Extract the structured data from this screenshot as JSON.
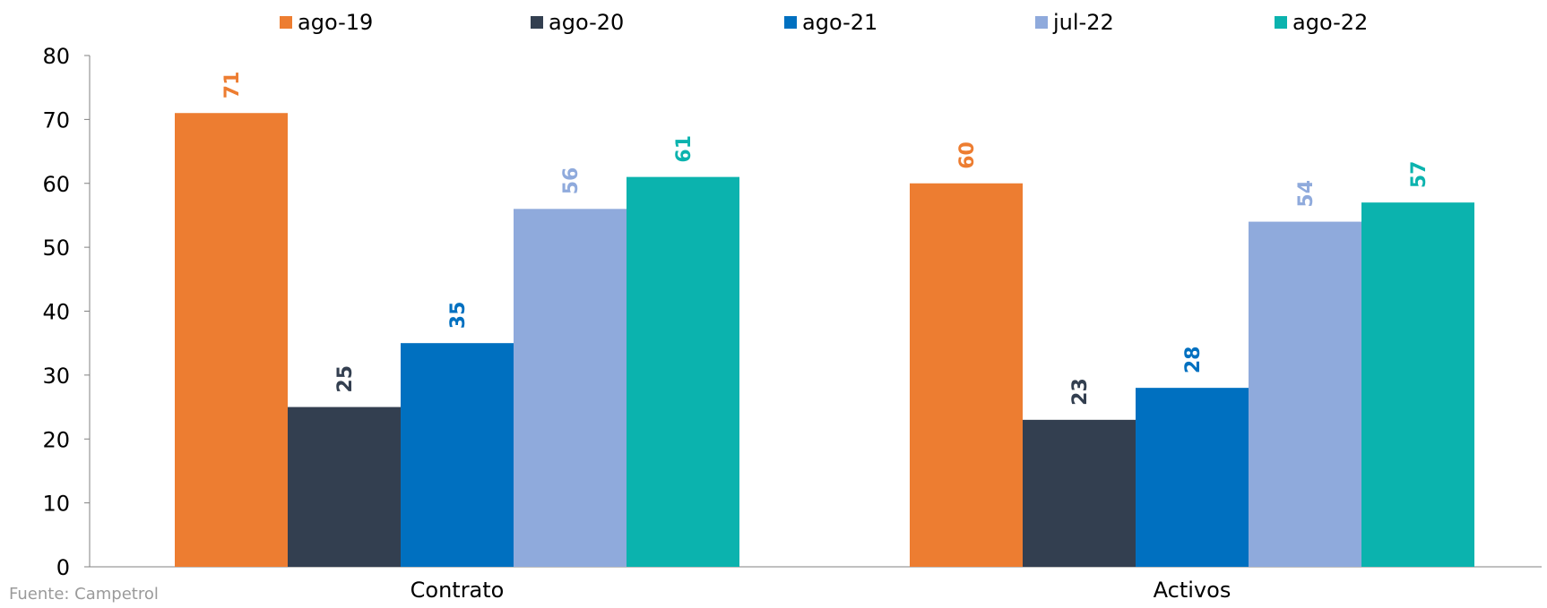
{
  "colors": {
    "ago-19": "#ED7D31",
    "ago-20": "#333F50",
    "ago-21": "#0070C0",
    "jul-22": "#8FAADC",
    "ago-22": "#0BB3AE",
    "axis": "#808080",
    "tick_text": "#000000"
  },
  "source": "Fuente: Campetrol",
  "chart_data": {
    "type": "bar",
    "categories": [
      "Contrato",
      "Activos"
    ],
    "series": [
      {
        "name": "ago-19",
        "values": [
          71,
          60
        ]
      },
      {
        "name": "ago-20",
        "values": [
          25,
          23
        ]
      },
      {
        "name": "ago-21",
        "values": [
          35,
          28
        ]
      },
      {
        "name": "jul-22",
        "values": [
          56,
          54
        ]
      },
      {
        "name": "ago-22",
        "values": [
          61,
          57
        ]
      }
    ],
    "ylim": [
      0,
      80
    ],
    "yticks": [
      0,
      10,
      20,
      30,
      40,
      50,
      60,
      70,
      80
    ],
    "legend_position": "top",
    "grid": false,
    "data_labels": true
  }
}
